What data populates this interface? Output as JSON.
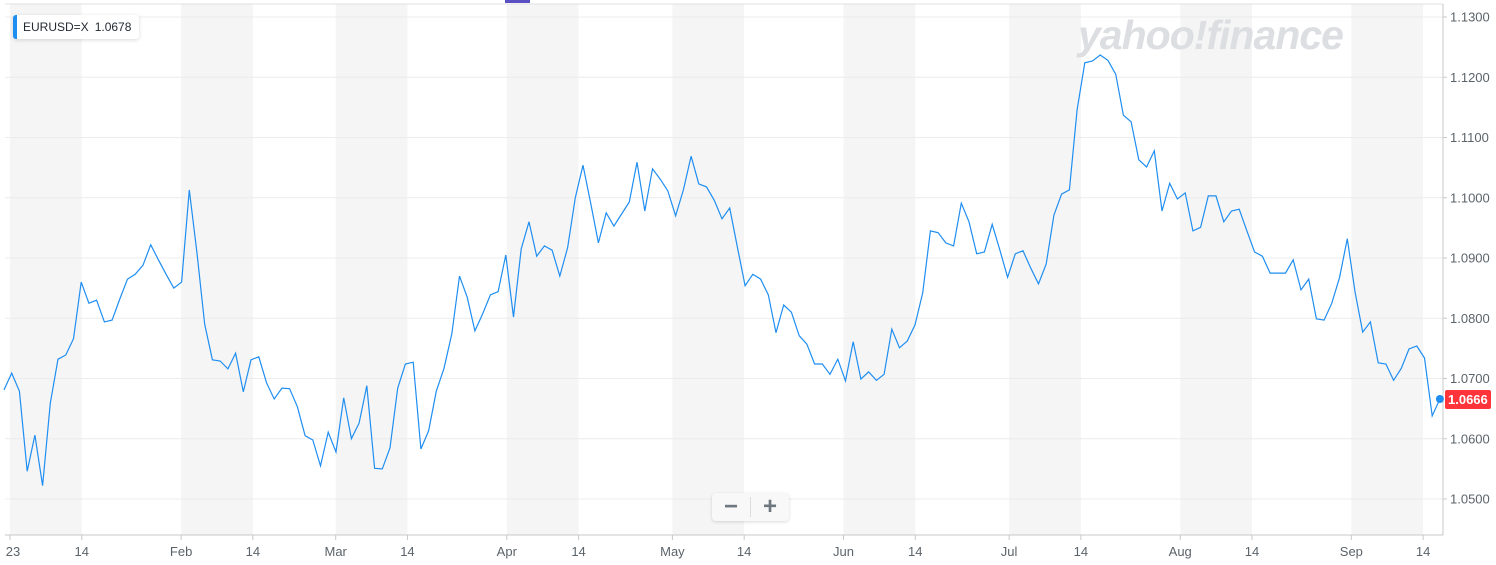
{
  "legend": {
    "symbol": "EURUSD=X",
    "value": "1.0678"
  },
  "watermark": "yahoo!finance",
  "last_price_badge": "1.0666",
  "zoom_controls": {
    "zoom_out": "−",
    "zoom_in": "+"
  },
  "colors": {
    "line": "#1f8ef1",
    "badge": "#ff333a",
    "band": "#f5f5f5",
    "grid": "#ececec",
    "accent": "#5b4fc4"
  },
  "chart_data": {
    "type": "line",
    "title": "",
    "xlabel": "",
    "ylabel": "",
    "ylim": [
      1.044,
      1.1325
    ],
    "grid": true,
    "legend": "top-left",
    "y_ticks": [
      "1.0500",
      "1.0600",
      "1.0700",
      "1.0800",
      "1.0900",
      "1.1000",
      "1.1100",
      "1.1200",
      "1.1300"
    ],
    "x_ticks": [
      {
        "label": "23",
        "date": "2023-01-01"
      },
      {
        "label": "14",
        "date": "2023-01-14"
      },
      {
        "label": "Feb",
        "date": "2023-02-01"
      },
      {
        "label": "14",
        "date": "2023-02-14"
      },
      {
        "label": "Mar",
        "date": "2023-03-01"
      },
      {
        "label": "14",
        "date": "2023-03-14"
      },
      {
        "label": "Apr",
        "date": "2023-04-01"
      },
      {
        "label": "14",
        "date": "2023-04-14"
      },
      {
        "label": "May",
        "date": "2023-05-01"
      },
      {
        "label": "14",
        "date": "2023-05-14"
      },
      {
        "label": "Jun",
        "date": "2023-06-01"
      },
      {
        "label": "14",
        "date": "2023-06-14"
      },
      {
        "label": "Jul",
        "date": "2023-07-01"
      },
      {
        "label": "14",
        "date": "2023-07-14"
      },
      {
        "label": "Aug",
        "date": "2023-08-01"
      },
      {
        "label": "14",
        "date": "2023-08-14"
      },
      {
        "label": "Sep",
        "date": "2023-09-01"
      },
      {
        "label": "14",
        "date": "2023-09-14"
      }
    ],
    "series": [
      {
        "name": "EURUSD=X",
        "x": [
          "2022-12-29",
          "2022-12-30",
          "2023-01-02",
          "2023-01-03",
          "2023-01-04",
          "2023-01-05",
          "2023-01-06",
          "2023-01-09",
          "2023-01-10",
          "2023-01-11",
          "2023-01-12",
          "2023-01-13",
          "2023-01-16",
          "2023-01-17",
          "2023-01-18",
          "2023-01-19",
          "2023-01-20",
          "2023-01-23",
          "2023-01-24",
          "2023-01-25",
          "2023-01-26",
          "2023-01-27",
          "2023-01-30",
          "2023-01-31",
          "2023-02-01",
          "2023-02-02",
          "2023-02-03",
          "2023-02-06",
          "2023-02-07",
          "2023-02-08",
          "2023-02-09",
          "2023-02-10",
          "2023-02-13",
          "2023-02-14",
          "2023-02-15",
          "2023-02-16",
          "2023-02-17",
          "2023-02-20",
          "2023-02-21",
          "2023-02-22",
          "2023-02-23",
          "2023-02-24",
          "2023-02-27",
          "2023-02-28",
          "2023-03-01",
          "2023-03-02",
          "2023-03-03",
          "2023-03-06",
          "2023-03-07",
          "2023-03-08",
          "2023-03-09",
          "2023-03-10",
          "2023-03-13",
          "2023-03-14",
          "2023-03-15",
          "2023-03-16",
          "2023-03-17",
          "2023-03-20",
          "2023-03-21",
          "2023-03-22",
          "2023-03-23",
          "2023-03-24",
          "2023-03-27",
          "2023-03-28",
          "2023-03-29",
          "2023-03-30",
          "2023-03-31",
          "2023-04-03",
          "2023-04-04",
          "2023-04-05",
          "2023-04-06",
          "2023-04-07",
          "2023-04-10",
          "2023-04-11",
          "2023-04-12",
          "2023-04-13",
          "2023-04-14",
          "2023-04-17",
          "2023-04-18",
          "2023-04-19",
          "2023-04-20",
          "2023-04-21",
          "2023-04-24",
          "2023-04-25",
          "2023-04-26",
          "2023-04-27",
          "2023-04-28",
          "2023-05-01",
          "2023-05-02",
          "2023-05-03",
          "2023-05-04",
          "2023-05-05",
          "2023-05-08",
          "2023-05-09",
          "2023-05-10",
          "2023-05-11",
          "2023-05-12",
          "2023-05-15",
          "2023-05-16",
          "2023-05-17",
          "2023-05-18",
          "2023-05-19",
          "2023-05-22",
          "2023-05-23",
          "2023-05-24",
          "2023-05-25",
          "2023-05-26",
          "2023-05-29",
          "2023-05-30",
          "2023-05-31",
          "2023-06-01",
          "2023-06-02",
          "2023-06-05",
          "2023-06-06",
          "2023-06-07",
          "2023-06-08",
          "2023-06-09",
          "2023-06-12",
          "2023-06-13",
          "2023-06-14",
          "2023-06-15",
          "2023-06-16",
          "2023-06-19",
          "2023-06-20",
          "2023-06-21",
          "2023-06-22",
          "2023-06-23",
          "2023-06-26",
          "2023-06-27",
          "2023-06-28",
          "2023-06-29",
          "2023-06-30",
          "2023-07-03",
          "2023-07-04",
          "2023-07-05",
          "2023-07-06",
          "2023-07-07",
          "2023-07-10",
          "2023-07-11",
          "2023-07-12",
          "2023-07-13",
          "2023-07-14",
          "2023-07-17",
          "2023-07-18",
          "2023-07-19",
          "2023-07-20",
          "2023-07-21",
          "2023-07-24",
          "2023-07-25",
          "2023-07-26",
          "2023-07-27",
          "2023-07-28",
          "2023-07-31",
          "2023-08-01",
          "2023-08-02",
          "2023-08-03",
          "2023-08-04",
          "2023-08-07",
          "2023-08-08",
          "2023-08-09",
          "2023-08-10",
          "2023-08-11",
          "2023-08-14",
          "2023-08-15",
          "2023-08-16",
          "2023-08-17",
          "2023-08-18",
          "2023-08-21",
          "2023-08-22",
          "2023-08-23",
          "2023-08-24",
          "2023-08-25",
          "2023-08-28",
          "2023-08-29",
          "2023-08-30",
          "2023-08-31",
          "2023-09-01",
          "2023-09-04",
          "2023-09-05",
          "2023-09-06",
          "2023-09-07",
          "2023-09-08",
          "2023-09-11",
          "2023-09-12",
          "2023-09-13",
          "2023-09-14",
          "2023-09-15"
        ],
        "values": [
          1.0681,
          1.0709,
          1.0679,
          1.0546,
          1.0606,
          1.0522,
          1.0659,
          1.0732,
          1.0739,
          1.0766,
          1.086,
          1.0825,
          1.083,
          1.0794,
          1.0797,
          1.0832,
          1.0865,
          1.0873,
          1.0888,
          1.0922,
          1.0897,
          1.0873,
          1.085,
          1.086,
          1.1013,
          1.0908,
          1.079,
          1.0731,
          1.0729,
          1.0716,
          1.0742,
          1.0678,
          1.0731,
          1.0736,
          1.0693,
          1.0666,
          1.0684,
          1.0683,
          1.0653,
          1.0605,
          1.0598,
          1.0555,
          1.0611,
          1.0578,
          1.0668,
          1.06,
          1.0626,
          1.0688,
          1.0551,
          1.055,
          1.0585,
          1.0684,
          1.0724,
          1.0727,
          1.0583,
          1.0613,
          1.0679,
          1.0717,
          1.0774,
          1.087,
          1.0835,
          1.0779,
          1.0807,
          1.0839,
          1.0844,
          1.0905,
          1.0802,
          1.0915,
          1.096,
          1.0903,
          1.092,
          1.0913,
          1.087,
          1.0917,
          1.1,
          1.1054,
          1.0991,
          1.0925,
          1.0975,
          1.0953,
          1.0973,
          1.0993,
          1.1059,
          1.0978,
          1.1048,
          1.1031,
          1.1011,
          1.097,
          1.1013,
          1.1069,
          1.1023,
          1.1018,
          1.0996,
          1.0965,
          1.0983,
          1.0918,
          1.0854,
          1.0873,
          1.0865,
          1.0839,
          1.0776,
          1.0822,
          1.081,
          1.0771,
          1.0757,
          1.0724,
          1.0724,
          1.0707,
          1.0732,
          1.0696,
          1.0761,
          1.0699,
          1.0711,
          1.0697,
          1.0707,
          1.0782,
          1.0751,
          1.0762,
          1.0789,
          1.0842,
          1.0945,
          1.0942,
          1.0925,
          1.092,
          1.0991,
          1.096,
          1.0907,
          1.091,
          1.0956,
          1.0913,
          1.0868,
          1.0907,
          1.0912,
          1.0883,
          1.0857,
          1.089,
          1.0971,
          1.1006,
          1.1013,
          1.1146,
          1.1224,
          1.1227,
          1.1237,
          1.1228,
          1.1205,
          1.1137,
          1.1126,
          1.1063,
          1.1051,
          1.1078,
          1.0978,
          1.1024,
          1.0998,
          1.1008,
          1.0945,
          1.0951,
          1.1003,
          1.1003,
          1.096,
          1.0978,
          1.0981,
          1.0945,
          1.091,
          1.0903,
          1.0875,
          1.0875,
          1.0875,
          1.0897,
          1.0847,
          1.0865,
          1.0799,
          1.0797,
          1.0825,
          1.0868,
          1.0932,
          1.0844,
          1.0777,
          1.0794,
          1.0726,
          1.0724,
          1.0697,
          1.0717,
          1.0749,
          1.0754,
          1.0734,
          1.0638,
          1.0666
        ]
      }
    ]
  }
}
